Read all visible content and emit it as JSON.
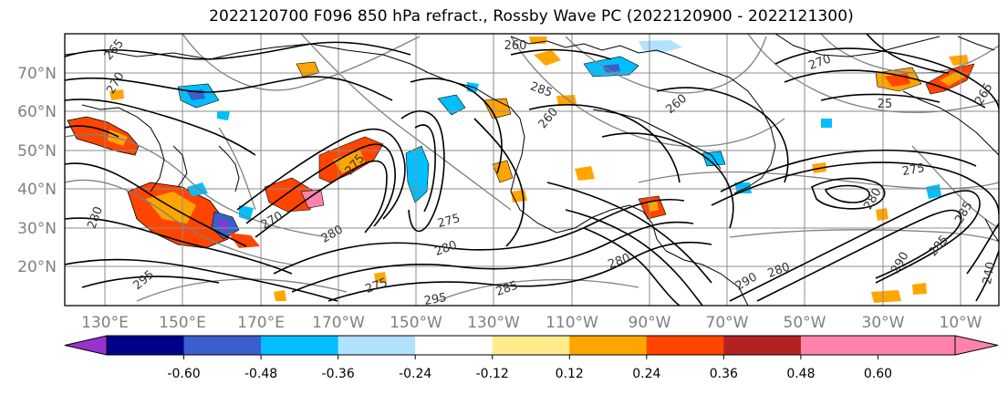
{
  "title": "2022120700 F096 850 hPa refract., Rossby Wave PC (2022120900 - 2022121300)",
  "lat_labels": [
    "70°N",
    "60°N",
    "50°N",
    "40°N",
    "30°N",
    "20°N"
  ],
  "lon_labels": [
    "130°E",
    "150°E",
    "170°E",
    "170°W",
    "150°W",
    "130°W",
    "110°W",
    "90°W",
    "70°W",
    "50°W",
    "30°W",
    "10°W"
  ],
  "contour_labels": [
    "265",
    "270",
    "260",
    "285",
    "260",
    "260",
    "280",
    "275",
    "280",
    "275",
    "285",
    "295",
    "280",
    "270",
    "290",
    "285",
    "280",
    "275",
    "290",
    "280",
    "295",
    "265",
    "275",
    "285",
    "270",
    "280",
    "240",
    "25"
  ],
  "colorbar": {
    "tick_labels": [
      "-0.60",
      "-0.48",
      "-0.36",
      "-0.24",
      "-0.12",
      "0.12",
      "0.24",
      "0.36",
      "0.48",
      "0.60"
    ],
    "colors": [
      "#9932cc",
      "#00008b",
      "#3a5fcd",
      "#00bfff",
      "#b0e2ff",
      "#ffffff",
      "#ffec8b",
      "#ffa500",
      "#ff4500",
      "#b22222",
      "#ff82ab",
      "#ff82ab"
    ],
    "under_color": "#9932cc",
    "over_color": "#ff82ab"
  },
  "colors": {
    "grid": "#8c8c8c",
    "axis_label": "#808080",
    "contour": "#000000",
    "height_contour": "#808080"
  }
}
